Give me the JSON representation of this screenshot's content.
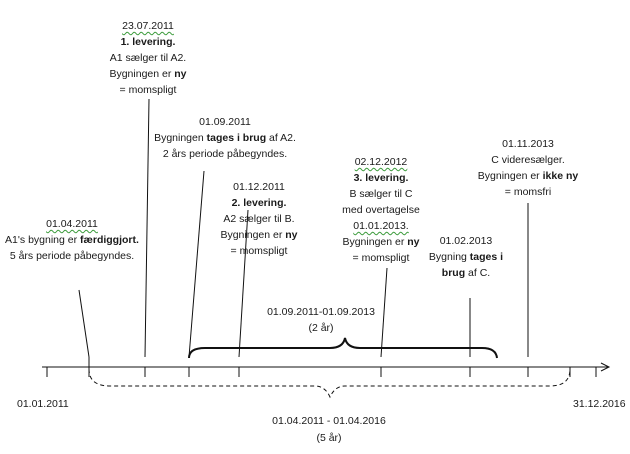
{
  "events": [
    {
      "date": "23.07.2011",
      "lines": [
        [
          "",
          "1. levering.",
          ""
        ],
        [
          "A1 sælger til A2.",
          "",
          ""
        ],
        [
          "Bygningen er ",
          "ny",
          ""
        ],
        [
          "= momspligt",
          "",
          ""
        ]
      ]
    },
    {
      "date": "01.09.2011",
      "lines": [
        [
          "Bygningen ",
          "tages i brug",
          " af A2."
        ],
        [
          "2 års periode påbegyndes.",
          "",
          ""
        ]
      ]
    },
    {
      "date": "01.12.2011",
      "lines": [
        [
          "",
          "2. levering.",
          ""
        ],
        [
          "A2 sælger til B.",
          "",
          ""
        ],
        [
          "Bygningen er ",
          "ny",
          ""
        ],
        [
          "= momspligt",
          "",
          ""
        ]
      ]
    },
    {
      "date": "01.04.2011",
      "lines": [
        [
          "A1's bygning er ",
          "færdiggjort.",
          ""
        ],
        [
          "5 års periode påbegyndes.",
          "",
          ""
        ]
      ]
    },
    {
      "date": "02.12.2012",
      "lines": [
        [
          "",
          "3. levering.",
          ""
        ],
        [
          "B sælger til C",
          "",
          ""
        ],
        [
          "med overtagelse",
          "",
          ""
        ],
        [
          "01.01.2013.",
          "",
          ""
        ],
        [
          "Bygningen er ",
          "ny",
          ""
        ],
        [
          "= momspligt",
          "",
          ""
        ]
      ]
    },
    {
      "date": "01.02.2013",
      "lines": [
        [
          "Bygning ",
          "tages i",
          ""
        ],
        [
          "",
          "brug",
          " af C."
        ]
      ]
    },
    {
      "date": "01.11.2013",
      "lines": [
        [
          "C videresælger.",
          "",
          ""
        ],
        [
          "Bygningen er ",
          "ikke ny",
          ""
        ],
        [
          "= momsfri",
          "",
          ""
        ]
      ]
    }
  ],
  "axis": {
    "start": "01.01.2011",
    "end": "31.12.2016"
  },
  "period_2": {
    "range": "01.09.2011-01.09.2013",
    "duration": "(2 år)"
  },
  "period_5": {
    "range": "01.04.2011 - 01.04.2016",
    "duration": "(5 år)"
  }
}
